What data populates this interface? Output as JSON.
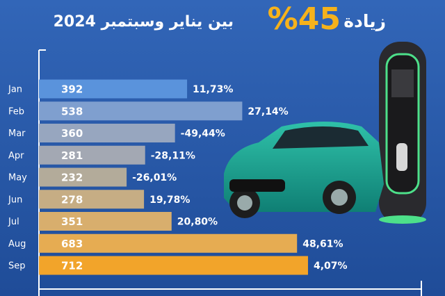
{
  "chart_data": {
    "type": "bar",
    "orientation": "horizontal",
    "title_start": "زيادة",
    "title_highlight": "%45",
    "title_end": "بين يناير وسبتمبر 2024",
    "categories": [
      "Jan",
      "Feb",
      "Mar",
      "Apr",
      "May",
      "Jun",
      "Jul",
      "Aug",
      "Sep"
    ],
    "values": [
      392,
      538,
      360,
      281,
      232,
      278,
      351,
      683,
      712
    ],
    "change_labels": [
      "11,73%",
      "27,14%",
      "-49,44%",
      "-28,11%",
      "-26,01%",
      "19,78%",
      "20,80%",
      "48,61%",
      "4,07%"
    ],
    "colors": [
      "#5a93dc",
      "#7f9fcf",
      "#97a6bf",
      "#a3a8b3",
      "#b3ab9a",
      "#c6ad84",
      "#d8ae6d",
      "#e6ac52",
      "#f2a42a"
    ]
  }
}
